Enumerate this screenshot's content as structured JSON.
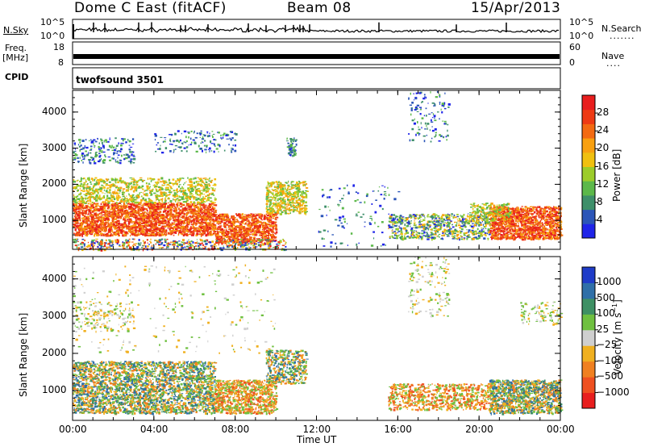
{
  "header": {
    "station": "Dome C East (fitACF)",
    "beam": "Beam 08",
    "date": "15/Apr/2013"
  },
  "sky_panel": {
    "left_label": "N.Sky",
    "left_ticks": [
      "10^5",
      "10^0"
    ],
    "right_ticks": [
      "10^5",
      "10^0"
    ],
    "right_label": "N.Search"
  },
  "freq_panel": {
    "left_label_1": "Freq.",
    "left_label_2": "[MHz]",
    "left_ticks": [
      "18",
      "8"
    ],
    "right_ticks": [
      "60",
      "0"
    ],
    "right_label": "Nave"
  },
  "cpid_panel": {
    "label": "CPID",
    "program": "twofsound 3501"
  },
  "chart_data": [
    {
      "type": "heatmap",
      "quantity": "Power",
      "ylabel": "Slant Range [km]",
      "yticks": [
        "1000",
        "2000",
        "3000",
        "4000"
      ],
      "ylim": [
        200,
        4600
      ],
      "colorbar_label": "Power [dB]",
      "colorbar_ticks": [
        "4",
        "8",
        "12",
        "16",
        "20",
        "24",
        "28"
      ],
      "colors": [
        "#1f24e8",
        "#2b55b8",
        "#3e8f6a",
        "#5cb84a",
        "#9ccc2a",
        "#f0c010",
        "#f8a010",
        "#f36a12",
        "#ee3a14",
        "#e81e1e"
      ]
    },
    {
      "type": "heatmap",
      "quantity": "Velocity",
      "ylabel": "Slant Range [km]",
      "yticks": [
        "1000",
        "2000",
        "3000",
        "4000"
      ],
      "ylim": [
        200,
        4600
      ],
      "colorbar_label": "Velocity [m s^-1]",
      "colorbar_ticks": [
        "1000",
        "500",
        "100",
        "25",
        "−25",
        "−100",
        "−500",
        "−1000"
      ],
      "colors": [
        "#1f3cc8",
        "#2f6fa8",
        "#3e9064",
        "#6fc040",
        "#cfcfcf",
        "#f0b020",
        "#f08020",
        "#ef5020",
        "#e81e1e"
      ]
    }
  ],
  "time_axis": {
    "label": "Time UT",
    "ticks": [
      "00:00",
      "04:00",
      "08:00",
      "12:00",
      "16:00",
      "20:00",
      "00:00"
    ]
  }
}
